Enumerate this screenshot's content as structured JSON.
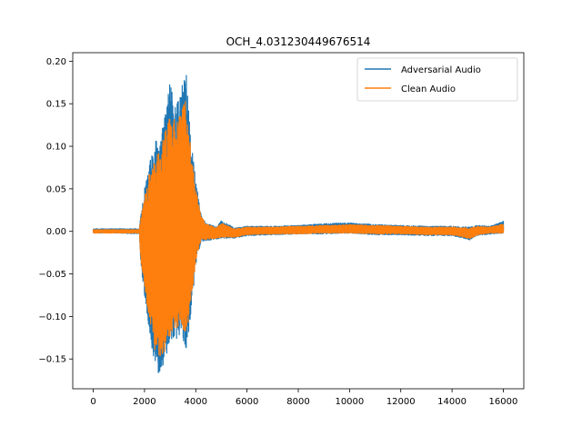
{
  "chart_data": {
    "type": "line",
    "title": "OCH_4.031230449676514",
    "xlabel": "",
    "ylabel": "",
    "xlim": [
      -800,
      16800
    ],
    "ylim": [
      -0.185,
      0.21
    ],
    "x_ticks": [
      0,
      2000,
      4000,
      6000,
      8000,
      10000,
      12000,
      14000,
      16000
    ],
    "x_tick_labels": [
      "0",
      "2000",
      "4000",
      "6000",
      "8000",
      "10000",
      "12000",
      "14000",
      "16000"
    ],
    "y_ticks": [
      -0.15,
      -0.1,
      -0.05,
      0.0,
      0.05,
      0.1,
      0.15,
      0.2
    ],
    "y_tick_labels": [
      "−0.15",
      "−0.10",
      "−0.05",
      "0.00",
      "0.05",
      "0.10",
      "0.15",
      "0.20"
    ],
    "grid": false,
    "legend_position": "top-right",
    "series": [
      {
        "name": "Adversarial Audio",
        "color": "#1f77b4",
        "envelope": {
          "x": [
            0,
            1000,
            1800,
            1850,
            2000,
            2200,
            2400,
            2600,
            2800,
            3000,
            3200,
            3400,
            3600,
            3800,
            4000,
            4200,
            4400,
            4800,
            5000,
            5500,
            6000,
            7000,
            8000,
            9000,
            10000,
            11000,
            12000,
            13000,
            14000,
            14700,
            15000,
            15500,
            16000
          ],
          "upper": [
            0.003,
            0.003,
            0.003,
            0.02,
            0.05,
            0.08,
            0.105,
            0.11,
            0.135,
            0.185,
            0.15,
            0.16,
            0.2,
            0.11,
            0.06,
            0.02,
            0.01,
            0.005,
            0.013,
            0.004,
            0.006,
            0.006,
            0.007,
            0.009,
            0.01,
            0.008,
            0.007,
            0.006,
            0.006,
            0.005,
            0.007,
            0.006,
            0.012
          ],
          "lower": [
            -0.002,
            -0.002,
            -0.003,
            -0.04,
            -0.075,
            -0.12,
            -0.16,
            -0.172,
            -0.155,
            -0.135,
            -0.13,
            -0.12,
            -0.145,
            -0.1,
            -0.04,
            -0.012,
            -0.011,
            -0.009,
            -0.008,
            -0.008,
            -0.005,
            -0.004,
            -0.003,
            -0.003,
            -0.002,
            -0.004,
            -0.004,
            -0.005,
            -0.005,
            -0.01,
            -0.005,
            -0.003,
            -0.002
          ]
        }
      },
      {
        "name": "Clean Audio",
        "color": "#ff7f0e",
        "envelope": {
          "x": [
            0,
            1000,
            1800,
            1850,
            2000,
            2200,
            2400,
            2600,
            2800,
            3000,
            3200,
            3400,
            3600,
            3800,
            4000,
            4200,
            4400,
            4800,
            5000,
            5500,
            6000,
            7000,
            8000,
            9000,
            10000,
            11000,
            12000,
            13000,
            14000,
            14700,
            15000,
            15500,
            16000
          ],
          "upper": [
            0.002,
            0.002,
            0.002,
            0.015,
            0.04,
            0.07,
            0.09,
            0.095,
            0.12,
            0.14,
            0.13,
            0.145,
            0.155,
            0.1,
            0.05,
            0.018,
            0.009,
            0.004,
            0.01,
            0.003,
            0.005,
            0.005,
            0.006,
            0.007,
            0.008,
            0.007,
            0.006,
            0.005,
            0.005,
            0.004,
            0.006,
            0.005,
            0.009
          ],
          "lower": [
            -0.002,
            -0.002,
            -0.002,
            -0.035,
            -0.065,
            -0.11,
            -0.14,
            -0.15,
            -0.14,
            -0.125,
            -0.115,
            -0.11,
            -0.13,
            -0.09,
            -0.035,
            -0.01,
            -0.01,
            -0.008,
            -0.007,
            -0.007,
            -0.004,
            -0.003,
            -0.003,
            -0.002,
            -0.002,
            -0.003,
            -0.003,
            -0.004,
            -0.004,
            -0.009,
            -0.004,
            -0.002,
            -0.002
          ]
        }
      }
    ]
  }
}
